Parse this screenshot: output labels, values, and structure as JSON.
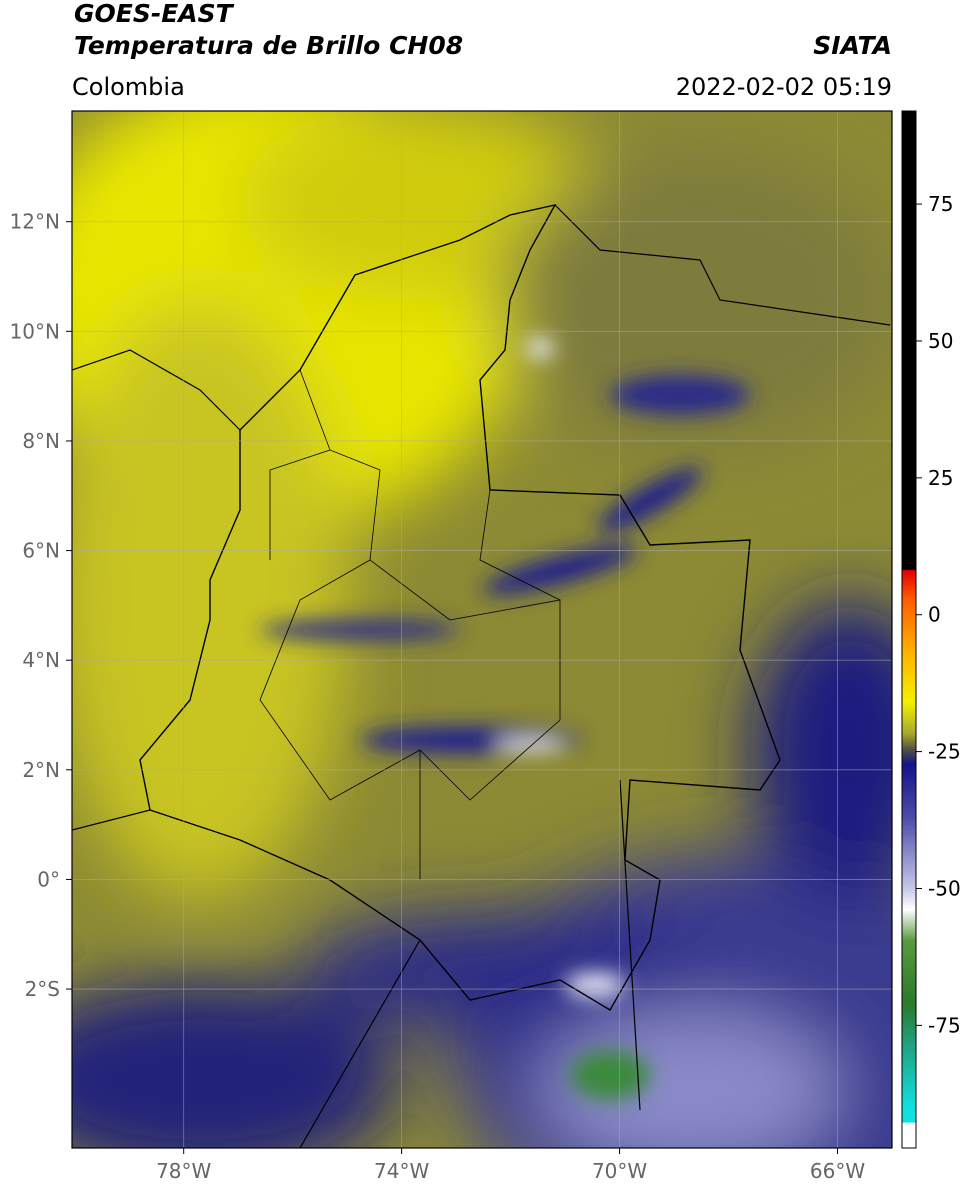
{
  "header": {
    "title": "GOES-EAST",
    "subtitle": "Temperatura de Brillo CH08",
    "source": "SIATA",
    "region": "Colombia",
    "datetime": "2022-02-02 05:19"
  },
  "map": {
    "lon_range": [
      -80.05,
      -65.0
    ],
    "lat_range": [
      -4.9,
      14.02
    ],
    "lon_ticks": [
      {
        "value": -78,
        "label": "78°W"
      },
      {
        "value": -74,
        "label": "74°W"
      },
      {
        "value": -70,
        "label": "70°W"
      },
      {
        "value": -66,
        "label": "66°W"
      }
    ],
    "lat_ticks": [
      {
        "value": 12,
        "label": "12°N"
      },
      {
        "value": 10,
        "label": "10°N"
      },
      {
        "value": 8,
        "label": "8°N"
      },
      {
        "value": 6,
        "label": "6°N"
      },
      {
        "value": 4,
        "label": "4°N"
      },
      {
        "value": 2,
        "label": "2°N"
      },
      {
        "value": 0,
        "label": "0°"
      },
      {
        "value": -2,
        "label": "2°S"
      }
    ]
  },
  "colorbar": {
    "range": [
      -97.4,
      92
    ],
    "ticks": [
      75,
      50,
      25,
      0,
      -25,
      -50,
      -75
    ]
  }
}
